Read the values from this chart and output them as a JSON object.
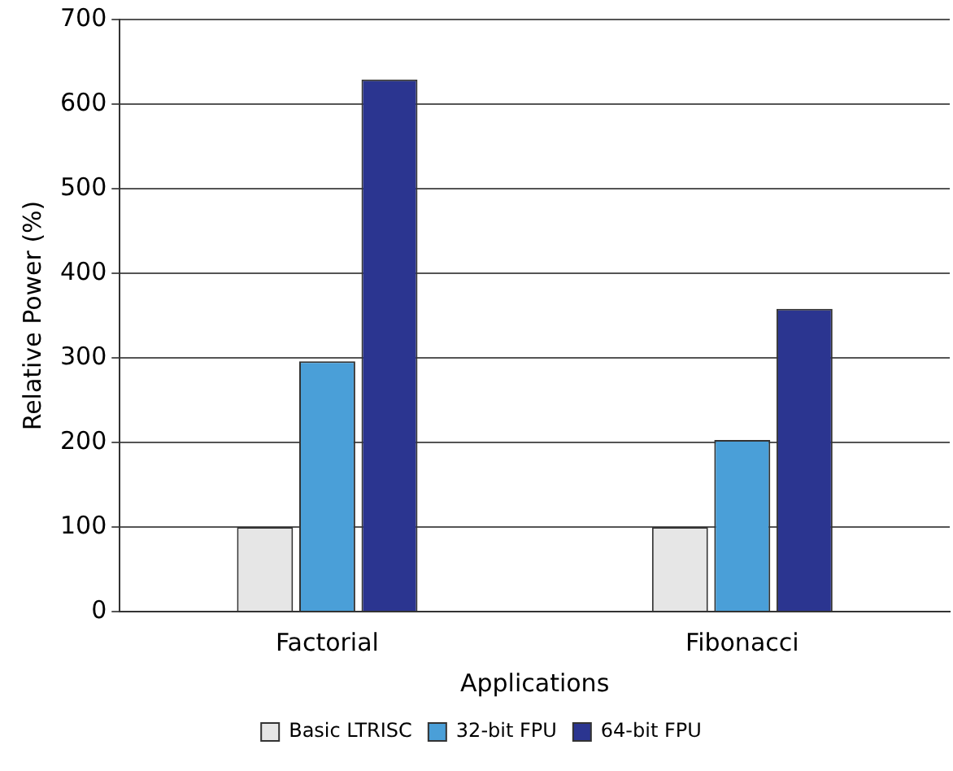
{
  "chart_data": {
    "type": "bar",
    "xlabel": "Applications",
    "ylabel": "Relative Power (%)",
    "categories": [
      "Factorial",
      "Fibonacci"
    ],
    "series": [
      {
        "name": "Basic LTRISC",
        "color": "#e6e6e6",
        "values": [
          100,
          100
        ]
      },
      {
        "name": "32-bit FPU",
        "color": "#4a9fd8",
        "values": [
          296,
          203
        ]
      },
      {
        "name": "64-bit FPU",
        "color": "#2b3590",
        "values": [
          629,
          358
        ]
      }
    ],
    "ylim": [
      0,
      700
    ],
    "yticks": [
      0,
      100,
      200,
      300,
      400,
      500,
      600,
      700
    ],
    "grid": "y",
    "legend": "bottom"
  }
}
